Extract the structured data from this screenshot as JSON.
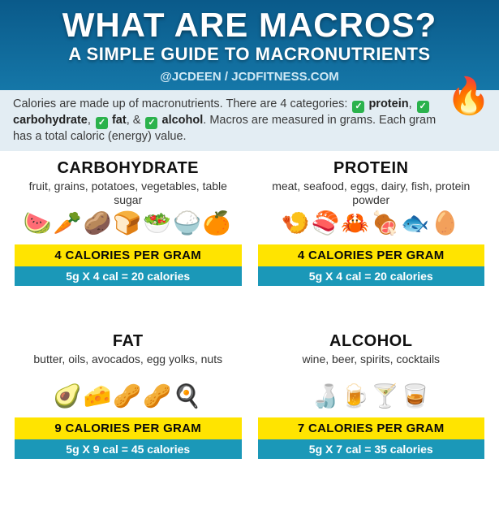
{
  "header": {
    "title": "WHAT ARE MACROS?",
    "subtitle": "A SIMPLE GUIDE TO MACRONUTRIENTS",
    "handle": "@JCDEEN / JCDFITNESS.COM"
  },
  "intro": {
    "line1_a": "Calories are made up of macronutrients. There are 4 categories:",
    "cat1": "protein",
    "cat2": "carbohydrate",
    "cat3": "fat",
    "amp": ", &",
    "cat4": "alcohol",
    "line2": ". Macros are measured in grams. Each gram has a total caloric (energy) value.",
    "fire_emoji": "🔥"
  },
  "macros": [
    {
      "name": "CARBOHYDRATE",
      "examples": "fruit, grains, potatoes, vegetables, table sugar",
      "emojis": "🍉🥕🥔🍞🥗🍚🍊",
      "cal_label": "4 CALORIES PER GRAM",
      "calc": "5g X 4 cal = 20 calories"
    },
    {
      "name": "PROTEIN",
      "examples": "meat, seafood, eggs, dairy, fish, protein powder",
      "emojis": "🍤🍣🦀🍖🐟🥚",
      "cal_label": "4 CALORIES PER GRAM",
      "calc": "5g X 4 cal = 20 calories"
    },
    {
      "name": "FAT",
      "examples": "butter, oils, avocados, egg yolks, nuts",
      "emojis": "🥑🧀🥜🥜🍳",
      "cal_label": "9 CALORIES PER GRAM",
      "calc": "5g X 9 cal = 45 calories"
    },
    {
      "name": "ALCOHOL",
      "examples": "wine, beer, spirits, cocktails",
      "emojis": "🍶🍺🍸🥃",
      "cal_label": "7 CALORIES PER GRAM",
      "calc": "5g X 7 cal = 35 calories"
    }
  ],
  "colors": {
    "header_grad_top": "#0a5a8a",
    "header_grad_bot": "#1577a8",
    "intro_bg": "#e3edf3",
    "yellow": "#ffe400",
    "teal": "#1b98b8",
    "check_green": "#2bb24c"
  }
}
